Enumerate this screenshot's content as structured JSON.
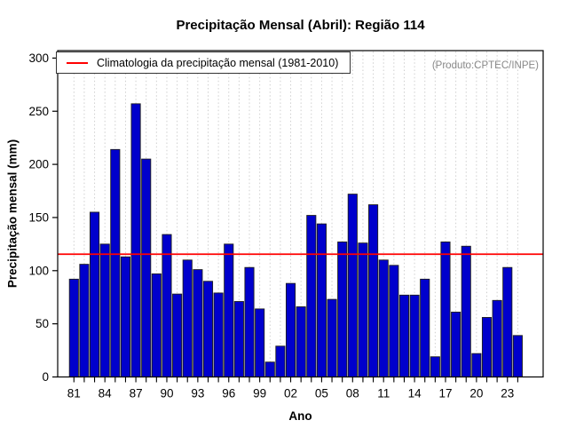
{
  "chart_data": {
    "type": "bar",
    "title": "Precipitação Mensal (Abril): Região 114",
    "xlabel": "Ano",
    "ylabel": "Precipitação mensal (mm)",
    "annotation": "(Produto:CPTEC/INPE)",
    "legend": {
      "label": "Climatologia da precipitação mensal (1981-2010)",
      "position": "top-left"
    },
    "x": [
      1981,
      1982,
      1983,
      1984,
      1985,
      1986,
      1987,
      1988,
      1989,
      1990,
      1991,
      1992,
      1993,
      1994,
      1995,
      1996,
      1997,
      1998,
      1999,
      2000,
      2001,
      2002,
      2003,
      2004,
      2005,
      2006,
      2007,
      2008,
      2009,
      2010,
      2011,
      2012,
      2013,
      2014,
      2015,
      2016,
      2017,
      2018,
      2019,
      2020,
      2021,
      2022,
      2023,
      2024
    ],
    "values": [
      92,
      106,
      155,
      125,
      214,
      113,
      257,
      205,
      97,
      134,
      78,
      110,
      101,
      90,
      79,
      125,
      71,
      103,
      64,
      14,
      29,
      88,
      66,
      152,
      144,
      73,
      127,
      172,
      126,
      162,
      110,
      105,
      77,
      77,
      92,
      19,
      127,
      61,
      123,
      22,
      56,
      72,
      103,
      39
    ],
    "climatology_line": {
      "value": 115.5,
      "period": "1981-2010",
      "color": "#ff0000"
    },
    "ylim": [
      0,
      300
    ],
    "y_ticks": [
      0,
      50,
      100,
      150,
      200,
      250,
      300
    ],
    "x_tick_label_step_years": 3,
    "x_tick_labels": [
      "81",
      "84",
      "87",
      "90",
      "93",
      "96",
      "99",
      "02",
      "05",
      "08",
      "11",
      "14",
      "17",
      "20",
      "23"
    ],
    "grid": "vertical-dashed",
    "legend_position": "top-left",
    "colors": {
      "bar": "#0000cc",
      "bar_border": "#1f1f1f",
      "climatology": "#ff0000",
      "grid": "#cfcfcf",
      "frame": "#000000",
      "annotation_text": "#888888"
    }
  }
}
